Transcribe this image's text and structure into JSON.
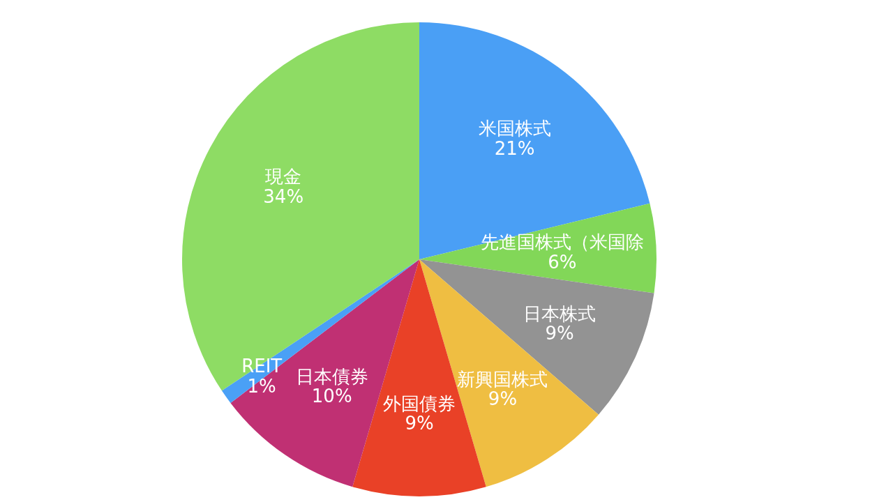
{
  "chart_data": {
    "type": "pie",
    "categories": [
      "米国株式",
      "先進国株式（米国除",
      "日本株式",
      "新興国株式",
      "外国債券",
      "日本債券",
      "REIT",
      "現金"
    ],
    "values": [
      21,
      6,
      9,
      9,
      9,
      10,
      1,
      34
    ],
    "value_labels": [
      "21%",
      "6%",
      "9%",
      "9%",
      "9%",
      "10%",
      "1%",
      "34%"
    ],
    "colors": [
      "#4a9ff5",
      "#82d758",
      "#939393",
      "#efbe42",
      "#e94127",
      "#c03073",
      "#4aa0f6",
      "#8edc64"
    ]
  }
}
